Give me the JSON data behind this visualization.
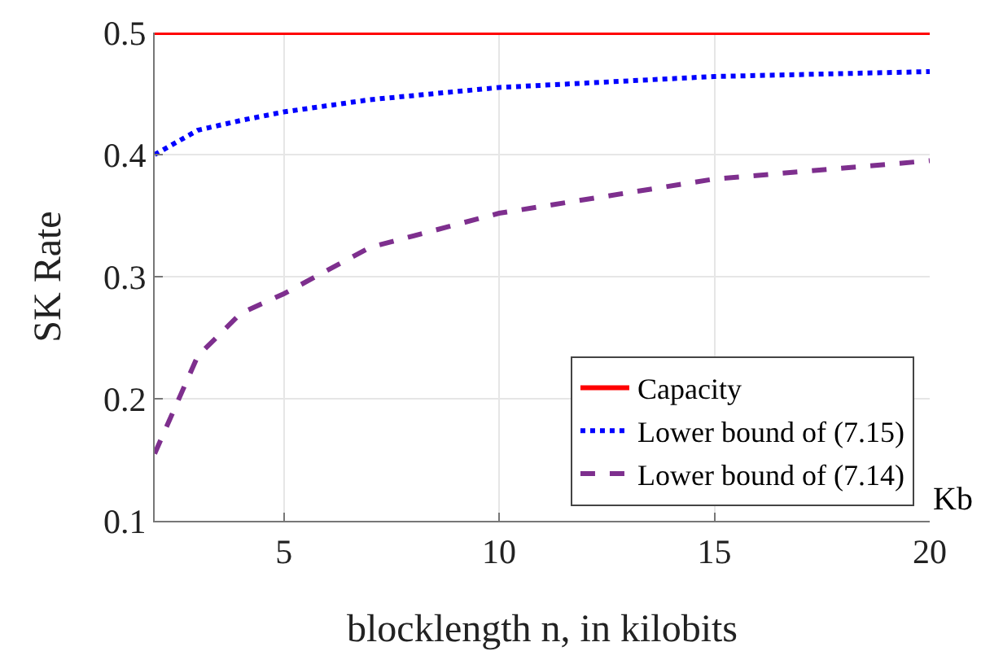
{
  "chart_data": {
    "type": "line",
    "xlabel": "blocklength n, in kilobits",
    "ylabel": "SK Rate",
    "xlim": [
      2,
      20
    ],
    "ylim": [
      0.1,
      0.5
    ],
    "xticks": [
      5,
      10,
      15,
      20
    ],
    "yticks": [
      0.1,
      0.2,
      0.3,
      0.4,
      0.5
    ],
    "grid": true,
    "legend": "bottom right",
    "marker": "none",
    "annotations": [
      "Kb"
    ],
    "x": [
      2,
      3,
      4,
      5,
      7,
      10,
      15,
      20
    ],
    "series": [
      {
        "name": "Capacity",
        "color": "#ff0000",
        "line_style": "solid",
        "values": [
          0.5,
          0.5,
          0.5,
          0.5,
          0.5,
          0.5,
          0.5,
          0.5
        ]
      },
      {
        "name": "Lower bound of (7.15)",
        "color": "#0000ff",
        "line_style": "dotted",
        "values": [
          0.4,
          0.42,
          0.428,
          0.435,
          0.445,
          0.455,
          0.464,
          0.468
        ]
      },
      {
        "name": "Lower bound of (7.14)",
        "color": "#7e2f8e",
        "line_style": "dashed",
        "values": [
          0.155,
          0.235,
          0.27,
          0.286,
          0.324,
          0.352,
          0.38,
          0.395
        ]
      }
    ]
  }
}
